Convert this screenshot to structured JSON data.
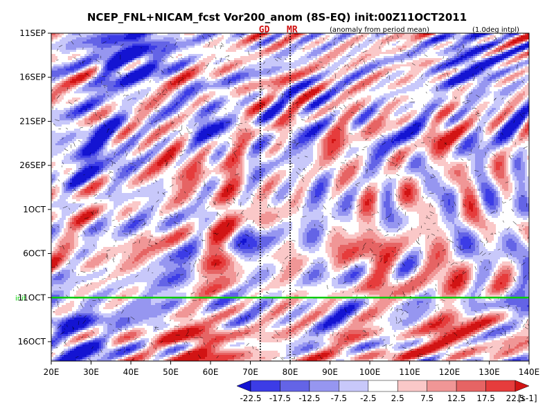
{
  "chart_data": {
    "type": "heatmap",
    "title": "NCEP_FNL+NICAM_fcst Vor200_anom (8S-EQ) init:00Z11OCT2011",
    "subtitle_left": "(anomaly from period mean)",
    "subtitle_right": "(1.0deg intpl)",
    "x_ticks": [
      "20E",
      "30E",
      "40E",
      "50E",
      "60E",
      "70E",
      "80E",
      "90E",
      "100E",
      "110E",
      "120E",
      "130E",
      "140E"
    ],
    "x_range": [
      20,
      140
    ],
    "y_ticks": [
      "11SEP",
      "16SEP",
      "21SEP",
      "26SEP",
      "1OCT",
      "6OCT",
      "11OCT",
      "16OCT"
    ],
    "y_tick_days": [
      0,
      5,
      10,
      15,
      20,
      25,
      30,
      35
    ],
    "y_range_days": [
      0,
      37.2
    ],
    "init_day": 30,
    "init_label": "init",
    "marker_lons": [
      72.5,
      80
    ],
    "markers": [
      {
        "label": "GD",
        "lon": 73.5
      },
      {
        "label": "MR",
        "lon": 80.5
      }
    ],
    "colorbar": {
      "levels": [
        "-22.5",
        "-17.5",
        "-12.5",
        "-7.5",
        "-2.5",
        "2.5",
        "7.5",
        "12.5",
        "17.5",
        "22.5"
      ],
      "colors": [
        "#1414d2",
        "#3c3ce6",
        "#6464e6",
        "#9696f0",
        "#c8c8fa",
        "#ffffff",
        "#fac8c8",
        "#f09696",
        "#e66464",
        "#e63c3c",
        "#d21414"
      ],
      "unit": "[s-1]"
    },
    "colors": {
      "init_line": "#00cc00",
      "marker_text": "#d01010"
    }
  }
}
